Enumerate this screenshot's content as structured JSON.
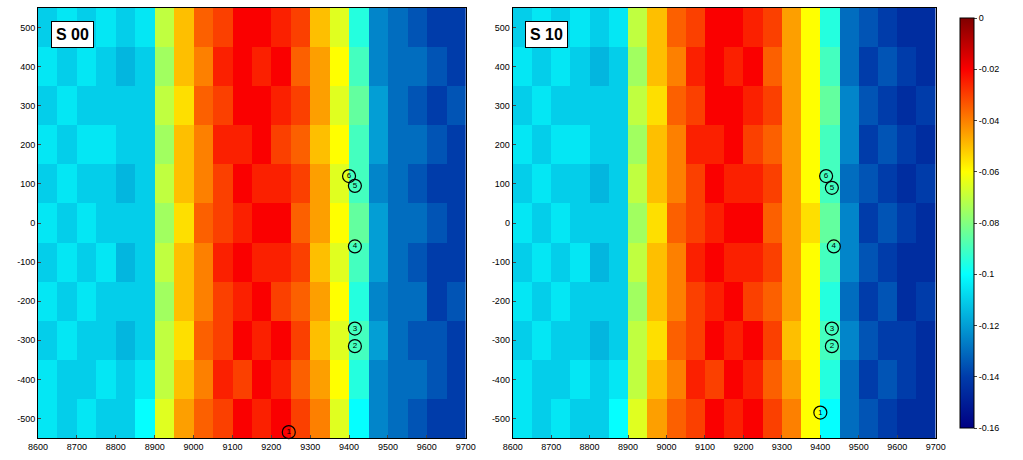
{
  "chart_data": [
    {
      "type": "heatmap",
      "title": "S 00",
      "x": [
        8625,
        8675,
        8725,
        8775,
        8825,
        8875,
        8925,
        8975,
        9025,
        9075,
        9125,
        9175,
        9225,
        9275,
        9325,
        9375,
        9425,
        9475,
        9525,
        9575,
        9625,
        9675
      ],
      "y": [
        -500,
        -400,
        -300,
        -200,
        -100,
        0,
        100,
        200,
        300,
        400,
        500
      ],
      "z": [
        [
          -0.105,
          -0.11,
          -0.105,
          -0.11,
          -0.11,
          -0.1,
          -0.065,
          -0.045,
          -0.035,
          -0.03,
          -0.02,
          -0.025,
          -0.02,
          -0.03,
          -0.04,
          -0.065,
          -0.1,
          -0.125,
          -0.13,
          -0.135,
          -0.14,
          -0.14
        ],
        [
          -0.105,
          -0.11,
          -0.11,
          -0.105,
          -0.11,
          -0.105,
          -0.07,
          -0.05,
          -0.04,
          -0.025,
          -0.03,
          -0.02,
          -0.025,
          -0.035,
          -0.045,
          -0.06,
          -0.095,
          -0.125,
          -0.13,
          -0.13,
          -0.135,
          -0.14
        ],
        [
          -0.11,
          -0.105,
          -0.11,
          -0.11,
          -0.115,
          -0.11,
          -0.07,
          -0.055,
          -0.035,
          -0.03,
          -0.02,
          -0.025,
          -0.02,
          -0.03,
          -0.05,
          -0.065,
          -0.09,
          -0.12,
          -0.13,
          -0.135,
          -0.135,
          -0.14
        ],
        [
          -0.105,
          -0.11,
          -0.105,
          -0.11,
          -0.11,
          -0.11,
          -0.075,
          -0.05,
          -0.04,
          -0.03,
          -0.025,
          -0.02,
          -0.03,
          -0.035,
          -0.045,
          -0.06,
          -0.095,
          -0.125,
          -0.13,
          -0.13,
          -0.14,
          -0.135
        ],
        [
          -0.11,
          -0.105,
          -0.11,
          -0.105,
          -0.115,
          -0.11,
          -0.07,
          -0.05,
          -0.04,
          -0.025,
          -0.02,
          -0.025,
          -0.025,
          -0.03,
          -0.05,
          -0.065,
          -0.09,
          -0.12,
          -0.13,
          -0.135,
          -0.14,
          -0.14
        ],
        [
          -0.105,
          -0.11,
          -0.105,
          -0.11,
          -0.11,
          -0.11,
          -0.075,
          -0.055,
          -0.035,
          -0.03,
          -0.025,
          -0.02,
          -0.02,
          -0.035,
          -0.045,
          -0.06,
          -0.085,
          -0.12,
          -0.13,
          -0.13,
          -0.135,
          -0.14
        ],
        [
          -0.11,
          -0.105,
          -0.11,
          -0.11,
          -0.115,
          -0.11,
          -0.07,
          -0.05,
          -0.04,
          -0.03,
          -0.02,
          -0.025,
          -0.025,
          -0.03,
          -0.045,
          -0.065,
          -0.09,
          -0.125,
          -0.13,
          -0.135,
          -0.14,
          -0.14
        ],
        [
          -0.105,
          -0.11,
          -0.105,
          -0.105,
          -0.11,
          -0.11,
          -0.075,
          -0.05,
          -0.04,
          -0.025,
          -0.025,
          -0.02,
          -0.03,
          -0.035,
          -0.05,
          -0.06,
          -0.09,
          -0.12,
          -0.13,
          -0.13,
          -0.135,
          -0.14
        ],
        [
          -0.11,
          -0.105,
          -0.11,
          -0.11,
          -0.11,
          -0.11,
          -0.07,
          -0.055,
          -0.035,
          -0.03,
          -0.02,
          -0.02,
          -0.025,
          -0.03,
          -0.045,
          -0.065,
          -0.085,
          -0.12,
          -0.13,
          -0.135,
          -0.14,
          -0.135
        ],
        [
          -0.105,
          -0.11,
          -0.105,
          -0.11,
          -0.115,
          -0.11,
          -0.075,
          -0.05,
          -0.04,
          -0.025,
          -0.02,
          -0.025,
          -0.02,
          -0.035,
          -0.045,
          -0.06,
          -0.09,
          -0.125,
          -0.13,
          -0.13,
          -0.135,
          -0.14
        ],
        [
          -0.11,
          -0.105,
          -0.11,
          -0.105,
          -0.11,
          -0.105,
          -0.07,
          -0.05,
          -0.035,
          -0.03,
          -0.02,
          -0.02,
          -0.025,
          -0.03,
          -0.05,
          -0.065,
          -0.095,
          -0.125,
          -0.13,
          -0.135,
          -0.14,
          -0.14
        ]
      ],
      "clim": [
        -0.16,
        0
      ],
      "xlim": [
        8600,
        9700
      ],
      "ylim": [
        -550,
        550
      ],
      "xticks": [
        8600,
        8700,
        8800,
        8900,
        9000,
        9100,
        9200,
        9300,
        9400,
        9500,
        9600,
        9700
      ],
      "yticks": [
        -500,
        -400,
        -300,
        -200,
        -100,
        0,
        100,
        200,
        300,
        400,
        500
      ],
      "circles": [
        {
          "label": "1",
          "x": 9245,
          "y": -535
        },
        {
          "label": "2",
          "x": 9415,
          "y": -315
        },
        {
          "label": "3",
          "x": 9415,
          "y": -270
        },
        {
          "label": "4",
          "x": 9415,
          "y": -60
        },
        {
          "label": "5",
          "x": 9415,
          "y": 95
        },
        {
          "label": "6",
          "x": 9400,
          "y": 120
        }
      ]
    },
    {
      "type": "heatmap",
      "title": "S 10",
      "x": [
        8625,
        8675,
        8725,
        8775,
        8825,
        8875,
        8925,
        8975,
        9025,
        9075,
        9125,
        9175,
        9225,
        9275,
        9325,
        9375,
        9425,
        9475,
        9525,
        9575,
        9625,
        9675
      ],
      "y": [
        -500,
        -400,
        -300,
        -200,
        -100,
        0,
        100,
        200,
        300,
        400,
        500
      ],
      "z": [
        [
          -0.105,
          -0.11,
          -0.105,
          -0.11,
          -0.11,
          -0.1,
          -0.065,
          -0.045,
          -0.035,
          -0.03,
          -0.02,
          -0.025,
          -0.02,
          -0.03,
          -0.04,
          -0.06,
          -0.1,
          -0.13,
          -0.135,
          -0.14,
          -0.145,
          -0.145
        ],
        [
          -0.105,
          -0.11,
          -0.11,
          -0.105,
          -0.11,
          -0.105,
          -0.07,
          -0.05,
          -0.04,
          -0.025,
          -0.03,
          -0.02,
          -0.025,
          -0.035,
          -0.045,
          -0.06,
          -0.095,
          -0.13,
          -0.14,
          -0.135,
          -0.14,
          -0.145
        ],
        [
          -0.11,
          -0.105,
          -0.11,
          -0.11,
          -0.115,
          -0.11,
          -0.07,
          -0.055,
          -0.035,
          -0.03,
          -0.02,
          -0.025,
          -0.02,
          -0.03,
          -0.05,
          -0.06,
          -0.09,
          -0.125,
          -0.135,
          -0.14,
          -0.14,
          -0.145
        ],
        [
          -0.105,
          -0.11,
          -0.105,
          -0.11,
          -0.11,
          -0.11,
          -0.075,
          -0.05,
          -0.04,
          -0.03,
          -0.025,
          -0.02,
          -0.03,
          -0.035,
          -0.045,
          -0.06,
          -0.095,
          -0.13,
          -0.14,
          -0.135,
          -0.145,
          -0.14
        ],
        [
          -0.11,
          -0.105,
          -0.11,
          -0.105,
          -0.115,
          -0.11,
          -0.07,
          -0.05,
          -0.04,
          -0.025,
          -0.02,
          -0.025,
          -0.025,
          -0.03,
          -0.045,
          -0.06,
          -0.09,
          -0.125,
          -0.135,
          -0.14,
          -0.145,
          -0.145
        ],
        [
          -0.105,
          -0.11,
          -0.105,
          -0.11,
          -0.11,
          -0.11,
          -0.075,
          -0.055,
          -0.035,
          -0.03,
          -0.025,
          -0.02,
          -0.02,
          -0.035,
          -0.045,
          -0.055,
          -0.085,
          -0.125,
          -0.14,
          -0.135,
          -0.14,
          -0.145
        ],
        [
          -0.11,
          -0.105,
          -0.11,
          -0.11,
          -0.115,
          -0.11,
          -0.07,
          -0.05,
          -0.04,
          -0.03,
          -0.02,
          -0.025,
          -0.025,
          -0.03,
          -0.045,
          -0.06,
          -0.09,
          -0.13,
          -0.135,
          -0.14,
          -0.145,
          -0.14
        ],
        [
          -0.105,
          -0.11,
          -0.105,
          -0.105,
          -0.11,
          -0.11,
          -0.075,
          -0.05,
          -0.04,
          -0.025,
          -0.025,
          -0.02,
          -0.03,
          -0.035,
          -0.045,
          -0.06,
          -0.09,
          -0.125,
          -0.14,
          -0.135,
          -0.14,
          -0.145
        ],
        [
          -0.11,
          -0.105,
          -0.11,
          -0.11,
          -0.11,
          -0.11,
          -0.07,
          -0.055,
          -0.035,
          -0.03,
          -0.02,
          -0.02,
          -0.025,
          -0.03,
          -0.045,
          -0.06,
          -0.085,
          -0.125,
          -0.135,
          -0.14,
          -0.145,
          -0.14
        ],
        [
          -0.105,
          -0.11,
          -0.105,
          -0.11,
          -0.115,
          -0.11,
          -0.075,
          -0.05,
          -0.04,
          -0.025,
          -0.02,
          -0.025,
          -0.02,
          -0.035,
          -0.045,
          -0.06,
          -0.09,
          -0.13,
          -0.14,
          -0.135,
          -0.14,
          -0.145
        ],
        [
          -0.11,
          -0.105,
          -0.11,
          -0.105,
          -0.11,
          -0.105,
          -0.07,
          -0.05,
          -0.035,
          -0.03,
          -0.02,
          -0.02,
          -0.025,
          -0.03,
          -0.045,
          -0.06,
          -0.095,
          -0.13,
          -0.135,
          -0.14,
          -0.145,
          -0.145
        ]
      ],
      "clim": [
        -0.16,
        0
      ],
      "cticks": [
        0,
        -0.02,
        -0.04,
        -0.06,
        -0.08,
        -0.1,
        -0.12,
        -0.14,
        -0.16
      ],
      "xlim": [
        8600,
        9700
      ],
      "ylim": [
        -550,
        550
      ],
      "xticks": [
        8600,
        8700,
        8800,
        8900,
        9000,
        9100,
        9200,
        9300,
        9400,
        9500,
        9600,
        9700
      ],
      "yticks": [
        -500,
        -400,
        -300,
        -200,
        -100,
        0,
        100,
        200,
        300,
        400,
        500
      ],
      "circles": [
        {
          "label": "1",
          "x": 9400,
          "y": -485
        },
        {
          "label": "2",
          "x": 9430,
          "y": -315
        },
        {
          "label": "3",
          "x": 9430,
          "y": -270
        },
        {
          "label": "4",
          "x": 9435,
          "y": -60
        },
        {
          "label": "5",
          "x": 9430,
          "y": 90
        },
        {
          "label": "6",
          "x": 9415,
          "y": 120
        }
      ]
    }
  ]
}
